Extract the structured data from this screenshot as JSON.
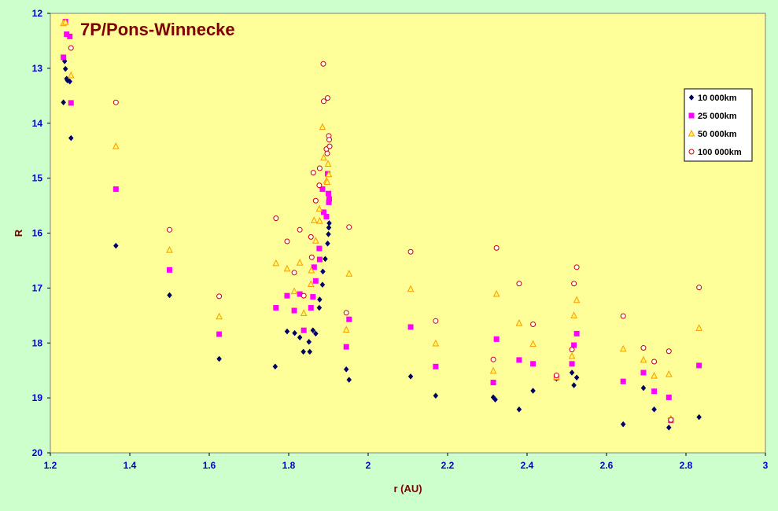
{
  "chart_data": {
    "type": "scatter",
    "title": "7P/Pons-Winnecke",
    "xlabel": "r (AU)",
    "ylabel": "R",
    "xlim": [
      1.2,
      3.0
    ],
    "ylim": [
      12,
      20
    ],
    "y_inverted": true,
    "xticks": [
      "1.2",
      "1.4",
      "1.6",
      "1.8",
      "2",
      "2.2",
      "2.4",
      "2.6",
      "2.8",
      "3"
    ],
    "yticks": [
      "12",
      "13",
      "14",
      "15",
      "16",
      "17",
      "18",
      "19",
      "20"
    ],
    "grid": false,
    "legend_position": "top-right",
    "plot_bg": "#ffff99",
    "frame_bg": "#ccffcc",
    "series": [
      {
        "name": "10 000km",
        "marker": "diamond",
        "color": "#000066",
        "points": [
          [
            1.233,
            13.62
          ],
          [
            1.236,
            12.87
          ],
          [
            1.238,
            13.01
          ],
          [
            1.241,
            13.19
          ],
          [
            1.243,
            13.22
          ],
          [
            1.249,
            13.24
          ],
          [
            1.252,
            14.27
          ],
          [
            1.365,
            16.23
          ],
          [
            1.5,
            17.13
          ],
          [
            1.625,
            18.29
          ],
          [
            1.766,
            18.43
          ],
          [
            1.796,
            17.79
          ],
          [
            1.815,
            17.82
          ],
          [
            1.828,
            17.9
          ],
          [
            1.837,
            18.16
          ],
          [
            1.853,
            18.16
          ],
          [
            1.851,
            17.98
          ],
          [
            1.861,
            17.77
          ],
          [
            1.868,
            17.83
          ],
          [
            1.877,
            17.36
          ],
          [
            1.878,
            17.21
          ],
          [
            1.885,
            16.94
          ],
          [
            1.886,
            16.7
          ],
          [
            1.892,
            16.47
          ],
          [
            1.898,
            16.19
          ],
          [
            1.9,
            16.02
          ],
          [
            1.901,
            15.9
          ],
          [
            1.902,
            15.82
          ],
          [
            1.945,
            18.48
          ],
          [
            1.952,
            18.67
          ],
          [
            2.107,
            18.61
          ],
          [
            2.17,
            18.96
          ],
          [
            2.315,
            18.99
          ],
          [
            2.32,
            19.03
          ],
          [
            2.38,
            19.21
          ],
          [
            2.415,
            18.87
          ],
          [
            2.474,
            18.65
          ],
          [
            2.513,
            18.54
          ],
          [
            2.518,
            18.77
          ],
          [
            2.525,
            18.63
          ],
          [
            2.642,
            19.48
          ],
          [
            2.693,
            18.82
          ],
          [
            2.72,
            19.21
          ],
          [
            2.757,
            19.54
          ],
          [
            2.833,
            19.35
          ]
        ]
      },
      {
        "name": "25 000km",
        "marker": "square",
        "color": "#ff00ff",
        "points": [
          [
            1.233,
            12.8
          ],
          [
            1.238,
            12.15
          ],
          [
            1.241,
            12.38
          ],
          [
            1.249,
            12.42
          ],
          [
            1.252,
            13.63
          ],
          [
            1.365,
            15.2
          ],
          [
            1.5,
            16.67
          ],
          [
            1.625,
            17.84
          ],
          [
            1.768,
            17.36
          ],
          [
            1.796,
            17.14
          ],
          [
            1.814,
            17.41
          ],
          [
            1.828,
            17.11
          ],
          [
            1.838,
            17.77
          ],
          [
            1.856,
            17.36
          ],
          [
            1.861,
            17.16
          ],
          [
            1.864,
            16.62
          ],
          [
            1.868,
            16.87
          ],
          [
            1.877,
            16.28
          ],
          [
            1.878,
            16.48
          ],
          [
            1.885,
            15.2
          ],
          [
            1.888,
            15.62
          ],
          [
            1.895,
            15.7
          ],
          [
            1.898,
            14.92
          ],
          [
            1.9,
            15.28
          ],
          [
            1.901,
            15.44
          ],
          [
            1.902,
            15.38
          ],
          [
            1.945,
            18.07
          ],
          [
            1.952,
            17.57
          ],
          [
            2.107,
            17.71
          ],
          [
            2.17,
            18.43
          ],
          [
            2.315,
            18.72
          ],
          [
            2.323,
            17.93
          ],
          [
            2.38,
            18.31
          ],
          [
            2.415,
            18.38
          ],
          [
            2.474,
            18.63
          ],
          [
            2.513,
            18.38
          ],
          [
            2.518,
            18.04
          ],
          [
            2.525,
            17.83
          ],
          [
            2.642,
            18.7
          ],
          [
            2.693,
            18.54
          ],
          [
            2.72,
            18.88
          ],
          [
            2.757,
            18.99
          ],
          [
            2.762,
            19.41
          ],
          [
            2.833,
            18.41
          ]
        ]
      },
      {
        "name": "50 000km",
        "marker": "triangle",
        "color": "#ff9900",
        "points": [
          [
            1.233,
            12.18
          ],
          [
            1.238,
            12.16
          ],
          [
            1.252,
            13.13
          ],
          [
            1.365,
            14.42
          ],
          [
            1.5,
            16.31
          ],
          [
            1.625,
            17.52
          ],
          [
            1.768,
            16.55
          ],
          [
            1.796,
            16.65
          ],
          [
            1.814,
            17.06
          ],
          [
            1.828,
            16.54
          ],
          [
            1.838,
            17.46
          ],
          [
            1.856,
            16.93
          ],
          [
            1.857,
            16.68
          ],
          [
            1.864,
            15.77
          ],
          [
            1.868,
            16.14
          ],
          [
            1.877,
            15.56
          ],
          [
            1.878,
            15.78
          ],
          [
            1.885,
            14.07
          ],
          [
            1.888,
            14.63
          ],
          [
            1.895,
            15.05
          ],
          [
            1.897,
            15.07
          ],
          [
            1.899,
            14.74
          ],
          [
            1.901,
            14.93
          ],
          [
            1.945,
            17.76
          ],
          [
            1.952,
            16.74
          ],
          [
            2.107,
            17.02
          ],
          [
            2.17,
            18.01
          ],
          [
            2.315,
            18.51
          ],
          [
            2.323,
            17.11
          ],
          [
            2.38,
            17.64
          ],
          [
            2.415,
            18.02
          ],
          [
            2.474,
            18.62
          ],
          [
            2.513,
            18.24
          ],
          [
            2.518,
            17.5
          ],
          [
            2.525,
            17.22
          ],
          [
            2.642,
            18.11
          ],
          [
            2.693,
            18.31
          ],
          [
            2.72,
            18.6
          ],
          [
            2.757,
            18.57
          ],
          [
            2.762,
            19.38
          ],
          [
            2.833,
            17.73
          ]
        ]
      },
      {
        "name": "100 000km",
        "marker": "circle",
        "color": "#cc0000",
        "points": [
          [
            1.252,
            12.63
          ],
          [
            1.365,
            13.62
          ],
          [
            1.5,
            15.94
          ],
          [
            1.625,
            17.15
          ],
          [
            1.768,
            15.73
          ],
          [
            1.796,
            16.15
          ],
          [
            1.814,
            16.72
          ],
          [
            1.828,
            15.94
          ],
          [
            1.838,
            17.14
          ],
          [
            1.856,
            16.07
          ],
          [
            1.858,
            16.44
          ],
          [
            1.862,
            14.9
          ],
          [
            1.868,
            15.41
          ],
          [
            1.877,
            15.13
          ],
          [
            1.878,
            14.82
          ],
          [
            1.887,
            12.92
          ],
          [
            1.888,
            13.6
          ],
          [
            1.895,
            14.47
          ],
          [
            1.897,
            14.55
          ],
          [
            1.898,
            13.54
          ],
          [
            1.901,
            14.23
          ],
          [
            1.902,
            14.3
          ],
          [
            1.903,
            14.42
          ],
          [
            1.945,
            17.45
          ],
          [
            1.952,
            15.89
          ],
          [
            2.107,
            16.34
          ],
          [
            2.17,
            17.6
          ],
          [
            2.315,
            18.3
          ],
          [
            2.323,
            16.27
          ],
          [
            2.38,
            16.92
          ],
          [
            2.415,
            17.66
          ],
          [
            2.474,
            18.59
          ],
          [
            2.513,
            18.12
          ],
          [
            2.518,
            16.92
          ],
          [
            2.525,
            16.62
          ],
          [
            2.642,
            17.51
          ],
          [
            2.693,
            18.09
          ],
          [
            2.72,
            18.34
          ],
          [
            2.757,
            18.15
          ],
          [
            2.762,
            19.4
          ],
          [
            2.833,
            16.99
          ]
        ]
      }
    ]
  }
}
